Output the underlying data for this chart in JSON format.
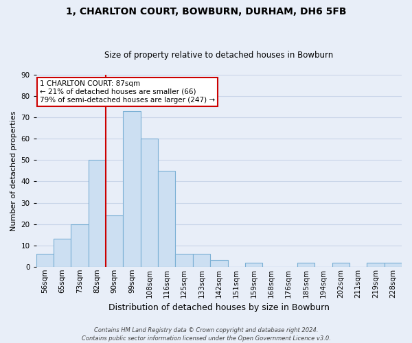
{
  "title": "1, CHARLTON COURT, BOWBURN, DURHAM, DH6 5FB",
  "subtitle": "Size of property relative to detached houses in Bowburn",
  "xlabel": "Distribution of detached houses by size in Bowburn",
  "ylabel": "Number of detached properties",
  "bin_labels": [
    "56sqm",
    "65sqm",
    "73sqm",
    "82sqm",
    "90sqm",
    "99sqm",
    "108sqm",
    "116sqm",
    "125sqm",
    "133sqm",
    "142sqm",
    "151sqm",
    "159sqm",
    "168sqm",
    "176sqm",
    "185sqm",
    "194sqm",
    "202sqm",
    "211sqm",
    "219sqm",
    "228sqm"
  ],
  "bar_values": [
    6,
    13,
    20,
    50,
    24,
    73,
    60,
    45,
    6,
    6,
    3,
    0,
    2,
    0,
    0,
    2,
    0,
    2,
    0,
    2,
    2
  ],
  "bar_color": "#ccdff2",
  "bar_edge_color": "#7aafd4",
  "vline_color": "#cc0000",
  "annotation_text": "1 CHARLTON COURT: 87sqm\n← 21% of detached houses are smaller (66)\n79% of semi-detached houses are larger (247) →",
  "annotation_box_color": "#ffffff",
  "annotation_box_edge": "#cc0000",
  "ylim": [
    0,
    90
  ],
  "yticks": [
    0,
    10,
    20,
    30,
    40,
    50,
    60,
    70,
    80,
    90
  ],
  "footnote": "Contains HM Land Registry data © Crown copyright and database right 2024.\nContains public sector information licensed under the Open Government Licence v3.0.",
  "grid_color": "#c8d4e8",
  "background_color": "#e8eef8",
  "title_fontsize": 10,
  "subtitle_fontsize": 8.5,
  "ylabel_fontsize": 8,
  "xlabel_fontsize": 9,
  "tick_fontsize": 7.5,
  "annot_fontsize": 7.5,
  "footnote_fontsize": 6.0
}
